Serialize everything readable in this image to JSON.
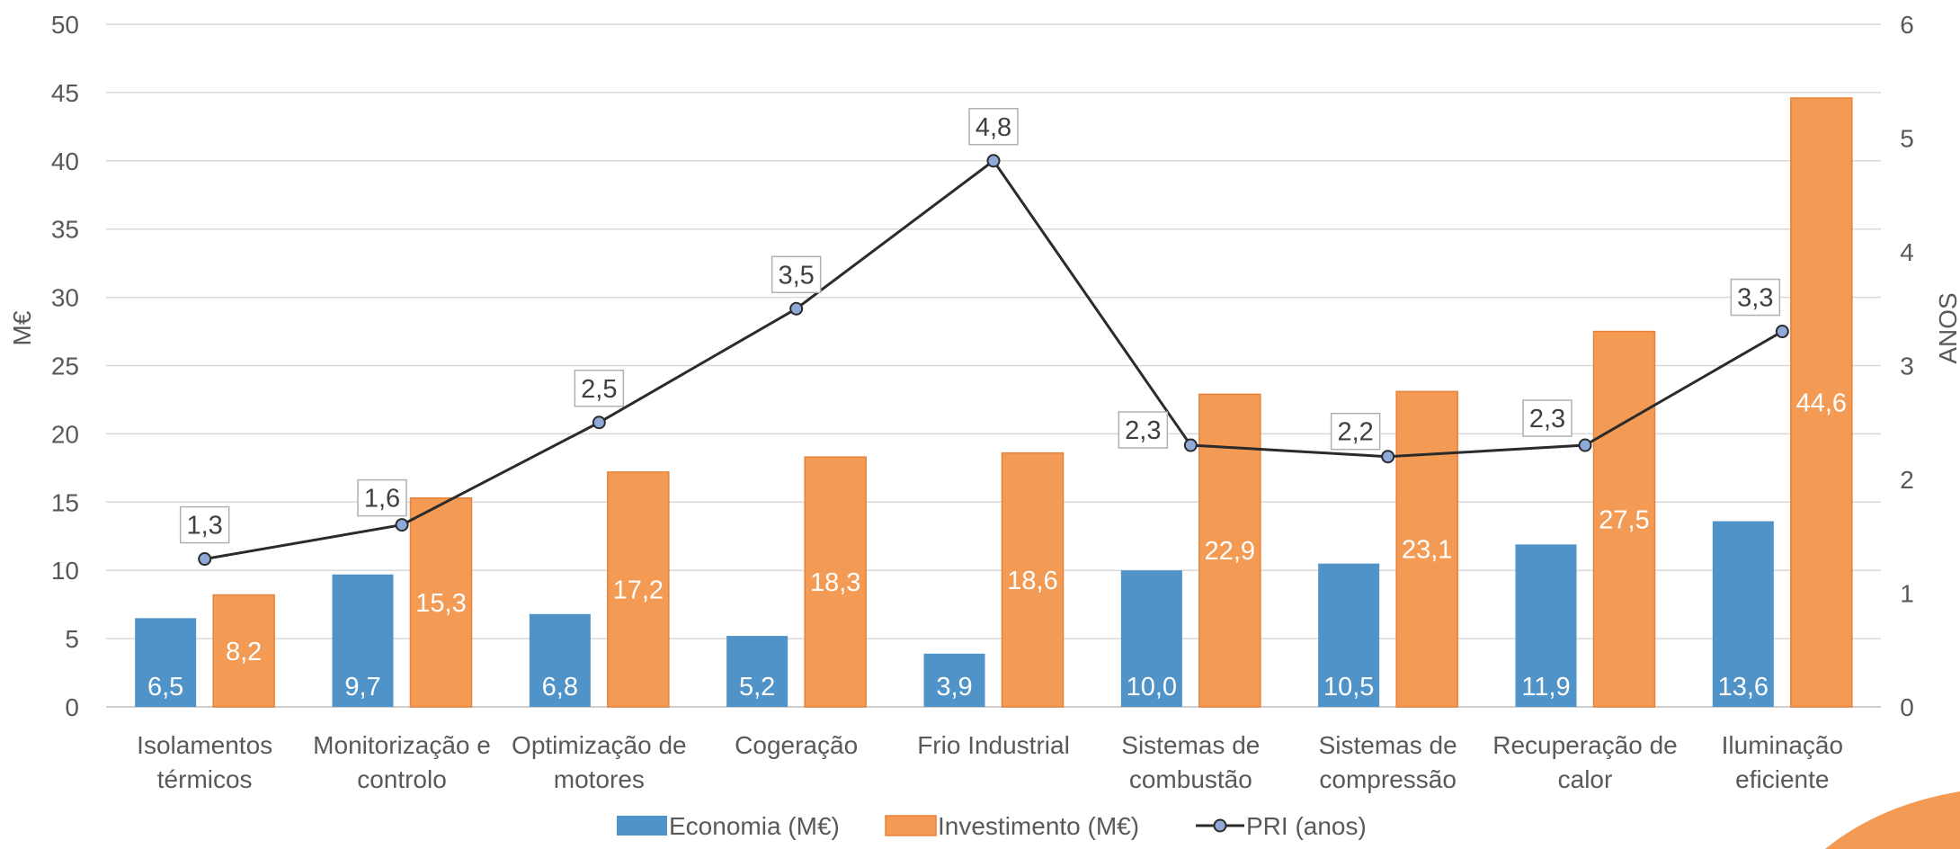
{
  "chart_data": {
    "type": "bar",
    "categories": [
      [
        "Isolamentos",
        "térmicos"
      ],
      [
        "Monitorização e",
        "controlo"
      ],
      [
        "Optimização de",
        "motores"
      ],
      [
        "Cogeração"
      ],
      [
        "Frio Industrial"
      ],
      [
        "Sistemas de",
        "combustão"
      ],
      [
        "Sistemas de",
        "compressão"
      ],
      [
        "Recuperação de",
        "calor"
      ],
      [
        "Iluminação",
        "eficiente"
      ]
    ],
    "series": [
      {
        "name": "Economia (M€)",
        "type": "bar",
        "axis": "left",
        "color": "#4f93c8",
        "values": [
          6.5,
          9.7,
          6.8,
          5.2,
          3.9,
          10.0,
          10.5,
          11.9,
          13.6
        ],
        "labels": [
          "6,5",
          "9,7",
          "6,8",
          "5,2",
          "3,9",
          "10,0",
          "10,5",
          "11,9",
          "13,6"
        ]
      },
      {
        "name": "Investimento (M€)",
        "type": "bar",
        "axis": "left",
        "color": "#f39b54",
        "values": [
          8.2,
          15.3,
          17.2,
          18.3,
          18.6,
          22.9,
          23.1,
          27.5,
          44.6
        ],
        "labels": [
          "8,2",
          "15,3",
          "17,2",
          "18,3",
          "18,6",
          "22,9",
          "23,1",
          "27,5",
          "44,6"
        ]
      },
      {
        "name": "PRI (anos)",
        "type": "line",
        "axis": "right",
        "color": "#2b2b2b",
        "values": [
          1.3,
          1.6,
          2.5,
          3.5,
          4.8,
          2.3,
          2.2,
          2.3,
          3.3
        ],
        "labels": [
          "1,3",
          "1,6",
          "2,5",
          "3,5",
          "4,8",
          "2,3",
          "2,2",
          "2,3",
          "3,3"
        ]
      }
    ],
    "ylabel": "M€",
    "y2label": "ANOS",
    "ylim": [
      0,
      50
    ],
    "y2lim": [
      0,
      6
    ],
    "yticks": [
      "0",
      "5",
      "10",
      "15",
      "20",
      "25",
      "30",
      "35",
      "40",
      "45",
      "50"
    ],
    "y2ticks": [
      "0",
      "1",
      "2",
      "3",
      "4",
      "5",
      "6"
    ],
    "grid": true,
    "legend_position": "bottom"
  },
  "decor": {
    "corner_color": "#f39b54"
  }
}
